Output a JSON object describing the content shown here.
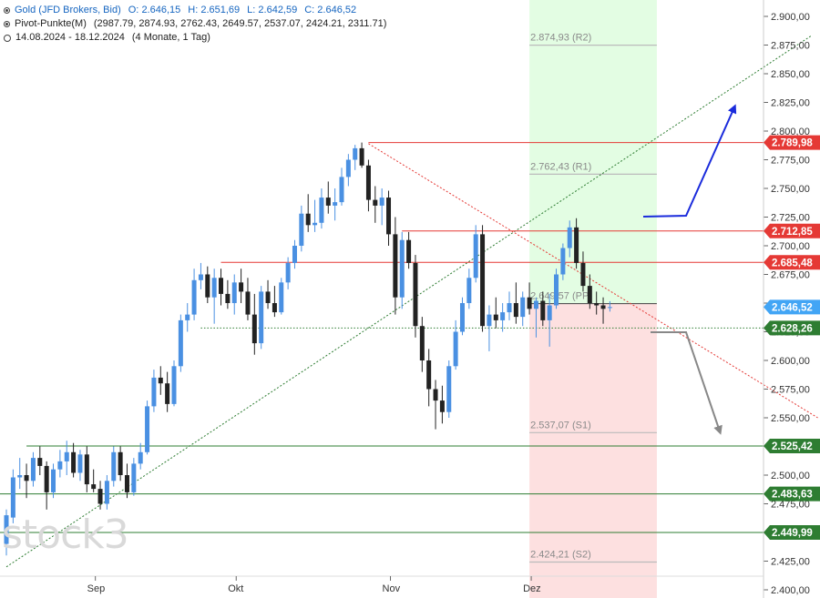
{
  "legend": {
    "title": "Gold (JFD Brokers, Bid)",
    "o_label": "O:",
    "o_value": "2.646,15",
    "h_label": "H:",
    "h_value": "2.651,69",
    "l_label": "L:",
    "l_value": "2.642,59",
    "c_label": "C:",
    "c_value": "2.646,52",
    "pivot_label": "Pivot-Punkte(M)",
    "pivot_values": "(2987.79, 2874.93, 2762.43, 2649.57, 2537.07, 2424.21, 2311.71)",
    "period": "14.08.2024 - 18.12.2024",
    "period_info": "(4 Monate, 1 Tag)"
  },
  "watermark": "stock3",
  "colors": {
    "up": "#4a90e2",
    "down": "#222222",
    "resistance": "#e53935",
    "support": "#2e7d32",
    "current": "#42a5f5",
    "pivot_upper_zone": "#e3fde3",
    "pivot_lower_zone": "#fde0e0",
    "arrow_up": "#1a2bdc",
    "arrow_down": "#888888"
  },
  "chart_data": {
    "type": "candlestick",
    "y_axis": {
      "min": 2400,
      "max": 2900,
      "step": 25,
      "position": "right",
      "tick_labels": [
        "2.900,00",
        "2.875,00",
        "2.850,00",
        "2.825,00",
        "2.800,00",
        "2.775,00",
        "2.750,00",
        "2.725,00",
        "2.700,00",
        "2.675,00",
        "2.650,00",
        "2.625,00",
        "2.600,00",
        "2.575,00",
        "2.550,00",
        "2.525,00",
        "2.500,00",
        "2.475,00",
        "2.450,00",
        "2.425,00",
        "2.400,00"
      ]
    },
    "x_axis": {
      "tick_labels": [
        {
          "label": "Sep",
          "index": 13
        },
        {
          "label": "Okt",
          "index": 34
        },
        {
          "label": "Nov",
          "index": 57
        },
        {
          "label": "Dez",
          "index": 78
        }
      ]
    },
    "candles": [
      [
        2440,
        2470,
        2430,
        2465
      ],
      [
        2463,
        2505,
        2458,
        2498
      ],
      [
        2498,
        2515,
        2488,
        2500
      ],
      [
        2500,
        2510,
        2480,
        2495
      ],
      [
        2495,
        2520,
        2490,
        2515
      ],
      [
        2515,
        2525,
        2500,
        2508
      ],
      [
        2508,
        2512,
        2470,
        2485
      ],
      [
        2485,
        2510,
        2480,
        2505
      ],
      [
        2505,
        2522,
        2498,
        2512
      ],
      [
        2512,
        2530,
        2500,
        2520
      ],
      [
        2520,
        2528,
        2498,
        2502
      ],
      [
        2502,
        2522,
        2495,
        2518
      ],
      [
        2518,
        2525,
        2485,
        2492
      ],
      [
        2492,
        2505,
        2485,
        2488
      ],
      [
        2488,
        2495,
        2470,
        2475
      ],
      [
        2475,
        2500,
        2470,
        2495
      ],
      [
        2495,
        2525,
        2490,
        2520
      ],
      [
        2520,
        2525,
        2495,
        2500
      ],
      [
        2500,
        2510,
        2480,
        2485
      ],
      [
        2485,
        2515,
        2482,
        2510
      ],
      [
        2510,
        2528,
        2505,
        2520
      ],
      [
        2520,
        2565,
        2518,
        2560
      ],
      [
        2560,
        2592,
        2555,
        2585
      ],
      [
        2585,
        2595,
        2570,
        2580
      ],
      [
        2580,
        2590,
        2555,
        2562
      ],
      [
        2562,
        2600,
        2560,
        2595
      ],
      [
        2595,
        2640,
        2590,
        2635
      ],
      [
        2635,
        2650,
        2625,
        2640
      ],
      [
        2640,
        2680,
        2635,
        2670
      ],
      [
        2670,
        2685,
        2662,
        2675
      ],
      [
        2675,
        2682,
        2650,
        2655
      ],
      [
        2655,
        2680,
        2632,
        2672
      ],
      [
        2672,
        2680,
        2648,
        2658
      ],
      [
        2658,
        2670,
        2645,
        2650
      ],
      [
        2650,
        2675,
        2640,
        2668
      ],
      [
        2668,
        2680,
        2650,
        2660
      ],
      [
        2660,
        2672,
        2635,
        2640
      ],
      [
        2640,
        2658,
        2605,
        2615
      ],
      [
        2615,
        2665,
        2610,
        2660
      ],
      [
        2660,
        2670,
        2645,
        2650
      ],
      [
        2650,
        2665,
        2638,
        2642
      ],
      [
        2642,
        2672,
        2640,
        2668
      ],
      [
        2668,
        2690,
        2662,
        2685
      ],
      [
        2685,
        2705,
        2680,
        2700
      ],
      [
        2700,
        2735,
        2695,
        2728
      ],
      [
        2728,
        2745,
        2712,
        2718
      ],
      [
        2718,
        2740,
        2712,
        2720
      ],
      [
        2720,
        2750,
        2715,
        2742
      ],
      [
        2742,
        2756,
        2728,
        2735
      ],
      [
        2735,
        2750,
        2722,
        2738
      ],
      [
        2738,
        2768,
        2735,
        2760
      ],
      [
        2760,
        2780,
        2752,
        2775
      ],
      [
        2775,
        2788,
        2766,
        2785
      ],
      [
        2785,
        2790,
        2768,
        2770
      ],
      [
        2770,
        2775,
        2730,
        2740
      ],
      [
        2740,
        2752,
        2720,
        2735
      ],
      [
        2735,
        2750,
        2718,
        2742
      ],
      [
        2742,
        2748,
        2700,
        2710
      ],
      [
        2710,
        2725,
        2640,
        2655
      ],
      [
        2655,
        2712,
        2645,
        2705
      ],
      [
        2705,
        2712,
        2680,
        2685
      ],
      [
        2685,
        2692,
        2620,
        2630
      ],
      [
        2630,
        2638,
        2590,
        2600
      ],
      [
        2600,
        2610,
        2560,
        2575
      ],
      [
        2575,
        2583,
        2540,
        2565
      ],
      [
        2565,
        2578,
        2545,
        2555
      ],
      [
        2555,
        2600,
        2550,
        2595
      ],
      [
        2595,
        2635,
        2592,
        2625
      ],
      [
        2625,
        2655,
        2622,
        2650
      ],
      [
        2650,
        2680,
        2645,
        2672
      ],
      [
        2672,
        2718,
        2668,
        2710
      ],
      [
        2710,
        2718,
        2625,
        2630
      ],
      [
        2630,
        2648,
        2608,
        2640
      ],
      [
        2640,
        2655,
        2628,
        2635
      ],
      [
        2635,
        2650,
        2625,
        2642
      ],
      [
        2642,
        2660,
        2635,
        2650
      ],
      [
        2650,
        2668,
        2632,
        2638
      ],
      [
        2638,
        2660,
        2630,
        2655
      ],
      [
        2655,
        2668,
        2640,
        2645
      ],
      [
        2645,
        2655,
        2620,
        2652
      ],
      [
        2652,
        2660,
        2630,
        2635
      ],
      [
        2635,
        2658,
        2612,
        2648
      ],
      [
        2648,
        2680,
        2645,
        2675
      ],
      [
        2675,
        2702,
        2670,
        2698
      ],
      [
        2698,
        2722,
        2690,
        2716
      ],
      [
        2716,
        2724,
        2680,
        2685
      ],
      [
        2685,
        2695,
        2660,
        2665
      ],
      [
        2665,
        2675,
        2645,
        2650
      ],
      [
        2650,
        2660,
        2640,
        2648
      ],
      [
        2648,
        2655,
        2632,
        2645
      ],
      [
        2646.15,
        2651.69,
        2642.59,
        2646.52
      ]
    ],
    "horizontal_levels": [
      {
        "label": "2.789,98",
        "value": 2789.98,
        "kind": "resistance"
      },
      {
        "label": "2.712,85",
        "value": 2712.85,
        "kind": "resistance"
      },
      {
        "label": "2.685,48",
        "value": 2685.48,
        "kind": "resistance"
      },
      {
        "label": "2.628,26",
        "value": 2628.26,
        "kind": "support-dotted"
      },
      {
        "label": "2.525,42",
        "value": 2525.42,
        "kind": "support"
      },
      {
        "label": "2.483,63",
        "value": 2483.63,
        "kind": "support"
      },
      {
        "label": "2.449,99",
        "value": 2449.99,
        "kind": "support"
      }
    ],
    "current_price": {
      "label": "2.646,52",
      "value": 2646.52
    },
    "pivots": [
      {
        "label": "2.874,93 (R2)",
        "value": 2874.93
      },
      {
        "label": "2.762,43 (R1)",
        "value": 2762.43
      },
      {
        "label": "2.649,57 (PP)",
        "value": 2649.57
      },
      {
        "label": "2.537,07 (S1)",
        "value": 2537.07
      },
      {
        "label": "2.424,21 (S2)",
        "value": 2424.21
      }
    ],
    "pivot_zone_start_index": 78,
    "pivot_zone_end_index": 97,
    "trendlines": [
      {
        "kind": "uptrend-dotted",
        "from": [
          0,
          2420
        ],
        "to": [
          120,
          2883
        ]
      },
      {
        "kind": "downtrend-dotted",
        "from": [
          54,
          2789
        ],
        "to": [
          121,
          2550
        ]
      }
    ]
  }
}
